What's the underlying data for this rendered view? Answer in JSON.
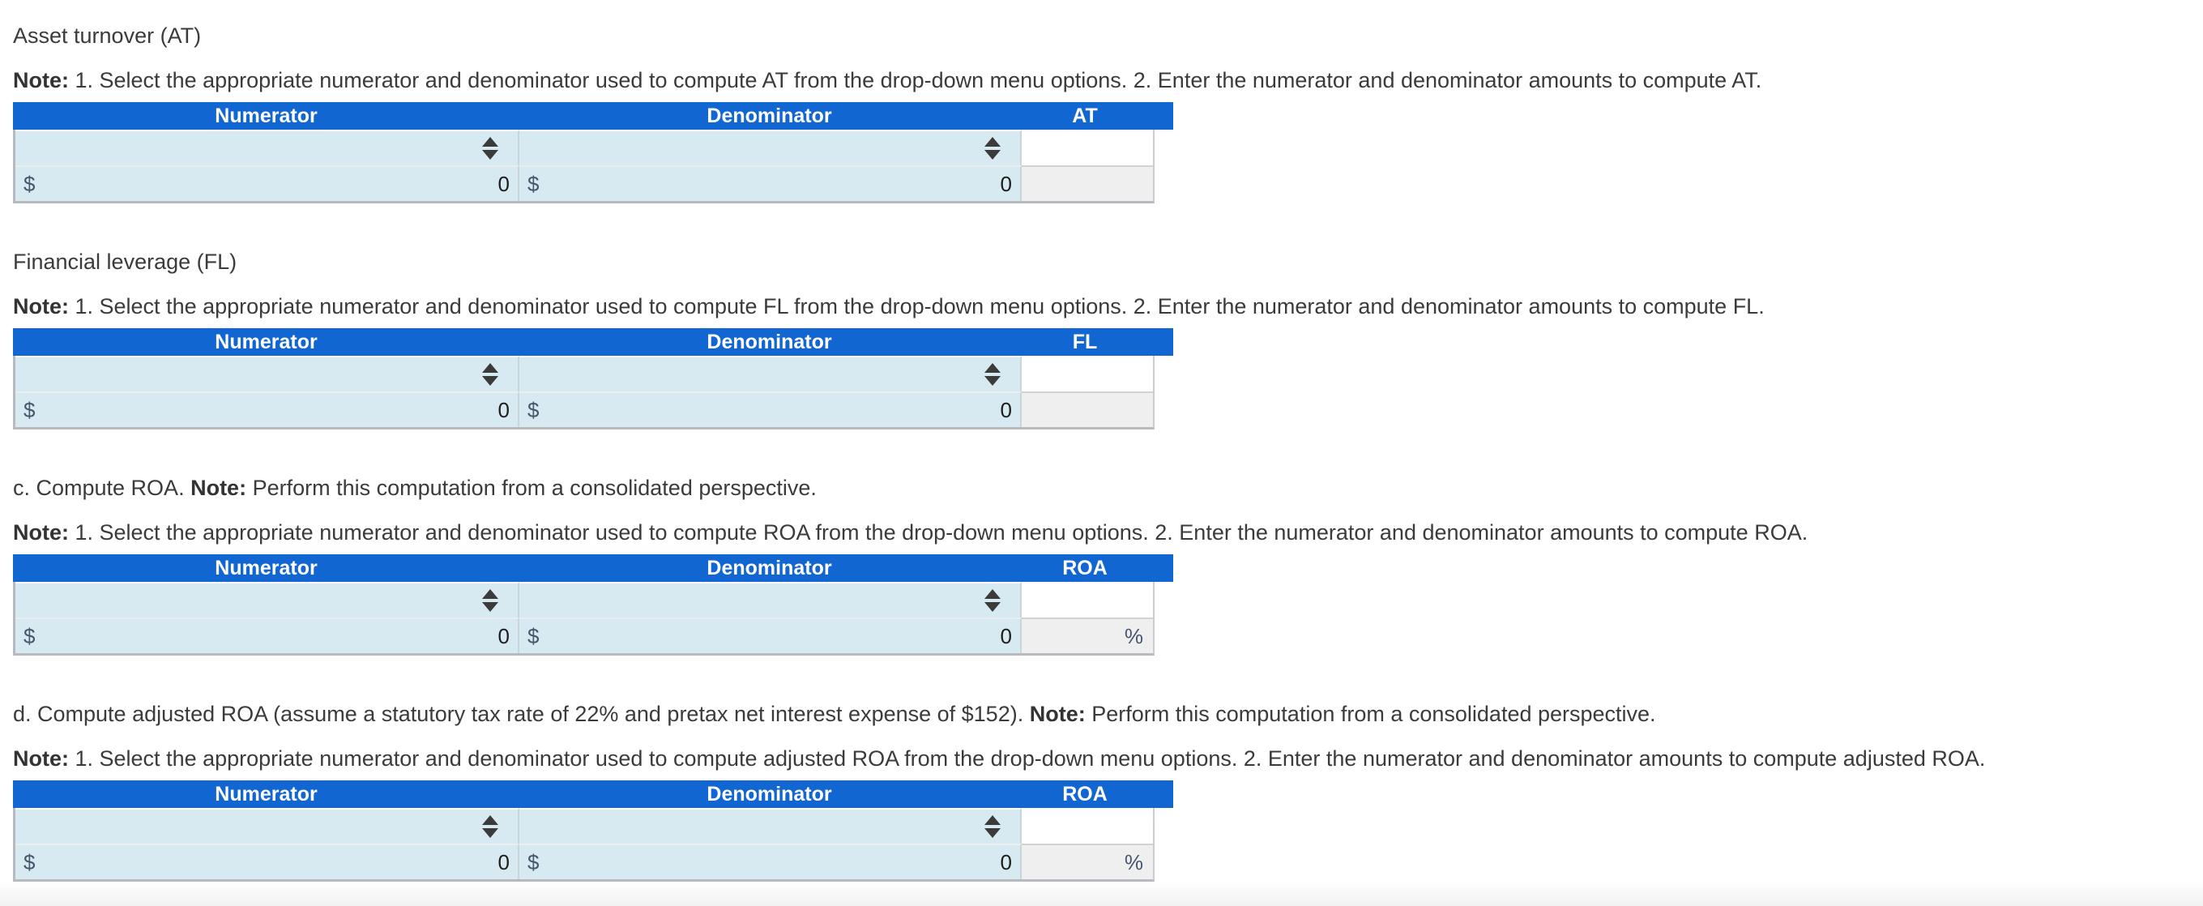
{
  "colors": {
    "table_header_blue": "#1166d1",
    "select_cell_blue": "#d7e9f1",
    "readonly_cell_gray": "#efefef",
    "currency_symbol_text": "#46566c",
    "header_text": "#ffffff"
  },
  "icons": {
    "select_spinner_icon": "stacked solid up/down triangles, dark gray"
  },
  "sections": [
    {
      "title_pre": "Asset turnover (AT)",
      "title_note_label": "",
      "title_post": "",
      "note_label": "Note:",
      "note_text": " 1. Select the appropriate numerator and denominator used to compute AT from the drop-down menu options. 2. Enter the numerator and denominator amounts to compute AT.",
      "table": {
        "headers": [
          "Numerator",
          "Denominator",
          "AT"
        ],
        "numerator_select_value": "",
        "denominator_select_value": "",
        "currency_symbol": "$",
        "numerator_amount": "0",
        "denominator_amount": "0",
        "result_value": "",
        "result_suffix": ""
      }
    },
    {
      "title_pre": "Financial leverage (FL)",
      "title_note_label": "",
      "title_post": "",
      "note_label": "Note:",
      "note_text": " 1. Select the appropriate numerator and denominator used to compute FL from the drop-down menu options. 2. Enter the numerator and denominator amounts to compute FL.",
      "table": {
        "headers": [
          "Numerator",
          "Denominator",
          "FL"
        ],
        "numerator_select_value": "",
        "denominator_select_value": "",
        "currency_symbol": "$",
        "numerator_amount": "0",
        "denominator_amount": "0",
        "result_value": "",
        "result_suffix": ""
      }
    },
    {
      "title_pre": "c. Compute ROA. ",
      "title_note_label": "Note:",
      "title_post": " Perform this computation from a consolidated perspective.",
      "note_label": "Note:",
      "note_text": " 1. Select the appropriate numerator and denominator used to compute ROA from the drop-down menu options. 2. Enter the numerator and denominator amounts to compute ROA.",
      "table": {
        "headers": [
          "Numerator",
          "Denominator",
          "ROA"
        ],
        "numerator_select_value": "",
        "denominator_select_value": "",
        "currency_symbol": "$",
        "numerator_amount": "0",
        "denominator_amount": "0",
        "result_value": "",
        "result_suffix": "%"
      }
    },
    {
      "title_pre": "d. Compute adjusted ROA (assume a statutory tax rate of 22% and pretax net interest expense of $152). ",
      "title_note_label": "Note:",
      "title_post": " Perform this computation from a consolidated perspective.",
      "note_label": "Note:",
      "note_text": " 1. Select the appropriate numerator and denominator used to compute adjusted ROA from the drop-down menu options. 2. Enter the numerator and denominator amounts to compute adjusted ROA.",
      "table": {
        "headers": [
          "Numerator",
          "Denominator",
          "ROA"
        ],
        "numerator_select_value": "",
        "denominator_select_value": "",
        "currency_symbol": "$",
        "numerator_amount": "0",
        "denominator_amount": "0",
        "result_value": "",
        "result_suffix": "%"
      }
    }
  ]
}
